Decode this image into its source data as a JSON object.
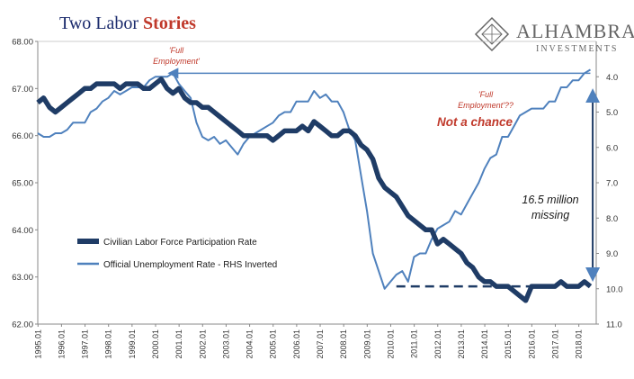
{
  "title": {
    "part1": "Two Labor",
    "part2": "Stories"
  },
  "logo": {
    "name": "ALHAMBRA",
    "sub": "INVESTMENTS"
  },
  "colors": {
    "participation": "#1f3c66",
    "unemployment": "#4f81bd",
    "title_navy": "#1a2a6c",
    "title_red": "#c0392b",
    "annotation_red": "#c0392b",
    "logo_gray": "#666666"
  },
  "annotations": {
    "full_employment_1": "'Full",
    "full_employment_2": "Employment'",
    "full_employment_q_1": "'Full",
    "full_employment_q_2": "Employment'??",
    "not_a_chance": "Not a chance",
    "missing_1": "16.5 million",
    "missing_2": "missing"
  },
  "chart_data": {
    "type": "line",
    "title": "Two Labor Stories",
    "x_ticks": [
      "1995.01",
      "1996.01",
      "1997.01",
      "1998.01",
      "1999.01",
      "2000.01",
      "2001.01",
      "2002.01",
      "2003.01",
      "2004.01",
      "2005.01",
      "2006.01",
      "2007.01",
      "2008.01",
      "2009.01",
      "2010.01",
      "2011.01",
      "2012.01",
      "2013.01",
      "2014.01",
      "2015.01",
      "2016.01",
      "2017.01",
      "2018.01"
    ],
    "x_range": [
      1995.0,
      2018.75
    ],
    "y_left": {
      "ticks": [
        "62.00",
        "63.00",
        "64.00",
        "65.00",
        "66.00",
        "67.00",
        "68.00"
      ],
      "range": [
        62.0,
        68.0
      ]
    },
    "y_right": {
      "ticks": [
        "4.0",
        "5.0",
        "6.0",
        "7.0",
        "8.0",
        "9.0",
        "10.0",
        "11.0"
      ],
      "range": [
        3.0,
        11.0
      ],
      "inverted": true
    },
    "grid": false,
    "legend_position": "left-middle",
    "series": [
      {
        "name": "Civilian Labor Force Participation Rate",
        "axis": "left",
        "x": [
          1995.0,
          1995.25,
          1995.5,
          1995.75,
          1996.0,
          1996.25,
          1996.5,
          1996.75,
          1997.0,
          1997.25,
          1997.5,
          1997.75,
          1998.0,
          1998.25,
          1998.5,
          1998.75,
          1999.0,
          1999.25,
          1999.5,
          1999.75,
          2000.0,
          2000.25,
          2000.5,
          2000.75,
          2001.0,
          2001.25,
          2001.5,
          2001.75,
          2002.0,
          2002.25,
          2002.5,
          2002.75,
          2003.0,
          2003.25,
          2003.5,
          2003.75,
          2004.0,
          2004.25,
          2004.5,
          2004.75,
          2005.0,
          2005.25,
          2005.5,
          2005.75,
          2006.0,
          2006.25,
          2006.5,
          2006.75,
          2007.0,
          2007.25,
          2007.5,
          2007.75,
          2008.0,
          2008.25,
          2008.5,
          2008.75,
          2009.0,
          2009.25,
          2009.5,
          2009.75,
          2010.0,
          2010.25,
          2010.5,
          2010.75,
          2011.0,
          2011.25,
          2011.5,
          2011.75,
          2012.0,
          2012.25,
          2012.5,
          2012.75,
          2013.0,
          2013.25,
          2013.5,
          2013.75,
          2014.0,
          2014.25,
          2014.5,
          2014.75,
          2015.0,
          2015.25,
          2015.5,
          2015.75,
          2016.0,
          2016.25,
          2016.5,
          2016.75,
          2017.0,
          2017.25,
          2017.5,
          2017.75,
          2018.0,
          2018.25,
          2018.5
        ],
        "values": [
          66.7,
          66.8,
          66.6,
          66.5,
          66.6,
          66.7,
          66.8,
          66.9,
          67.0,
          67.0,
          67.1,
          67.1,
          67.1,
          67.1,
          67.0,
          67.1,
          67.1,
          67.1,
          67.0,
          67.0,
          67.1,
          67.2,
          67.0,
          66.9,
          67.0,
          66.8,
          66.7,
          66.7,
          66.6,
          66.6,
          66.5,
          66.4,
          66.3,
          66.2,
          66.1,
          66.0,
          66.0,
          66.0,
          66.0,
          66.0,
          65.9,
          66.0,
          66.1,
          66.1,
          66.1,
          66.2,
          66.1,
          66.3,
          66.2,
          66.1,
          66.0,
          66.0,
          66.1,
          66.1,
          66.0,
          65.8,
          65.7,
          65.5,
          65.1,
          64.9,
          64.8,
          64.7,
          64.5,
          64.3,
          64.2,
          64.1,
          64.0,
          64.0,
          63.7,
          63.8,
          63.7,
          63.6,
          63.5,
          63.3,
          63.2,
          63.0,
          62.9,
          62.9,
          62.8,
          62.8,
          62.8,
          62.7,
          62.6,
          62.5,
          62.8,
          62.8,
          62.8,
          62.8,
          62.8,
          62.9,
          62.8,
          62.8,
          62.8,
          62.9,
          62.8
        ]
      },
      {
        "name": "Official Unemployment Rate - RHS Inverted",
        "axis": "right",
        "x": [
          1995.0,
          1995.25,
          1995.5,
          1995.75,
          1996.0,
          1996.25,
          1996.5,
          1996.75,
          1997.0,
          1997.25,
          1997.5,
          1997.75,
          1998.0,
          1998.25,
          1998.5,
          1998.75,
          1999.0,
          1999.25,
          1999.5,
          1999.75,
          2000.0,
          2000.25,
          2000.5,
          2000.75,
          2001.0,
          2001.25,
          2001.5,
          2001.75,
          2002.0,
          2002.25,
          2002.5,
          2002.75,
          2003.0,
          2003.25,
          2003.5,
          2003.75,
          2004.0,
          2004.25,
          2004.5,
          2004.75,
          2005.0,
          2005.25,
          2005.5,
          2005.75,
          2006.0,
          2006.25,
          2006.5,
          2006.75,
          2007.0,
          2007.25,
          2007.5,
          2007.75,
          2008.0,
          2008.25,
          2008.5,
          2008.75,
          2009.0,
          2009.25,
          2009.5,
          2009.75,
          2010.0,
          2010.25,
          2010.5,
          2010.75,
          2011.0,
          2011.25,
          2011.5,
          2011.75,
          2012.0,
          2012.25,
          2012.5,
          2012.75,
          2013.0,
          2013.25,
          2013.5,
          2013.75,
          2014.0,
          2014.25,
          2014.5,
          2014.75,
          2015.0,
          2015.25,
          2015.5,
          2015.75,
          2016.0,
          2016.25,
          2016.5,
          2016.75,
          2017.0,
          2017.25,
          2017.5,
          2017.75,
          2018.0,
          2018.25,
          2018.5
        ],
        "values": [
          5.6,
          5.7,
          5.7,
          5.6,
          5.6,
          5.5,
          5.3,
          5.3,
          5.3,
          5.0,
          4.9,
          4.7,
          4.6,
          4.4,
          4.5,
          4.4,
          4.3,
          4.3,
          4.3,
          4.1,
          4.0,
          4.0,
          4.0,
          3.9,
          4.2,
          4.4,
          4.6,
          5.3,
          5.7,
          5.8,
          5.7,
          5.9,
          5.8,
          6.0,
          6.2,
          5.9,
          5.7,
          5.6,
          5.5,
          5.4,
          5.3,
          5.1,
          5.0,
          5.0,
          4.7,
          4.7,
          4.7,
          4.4,
          4.6,
          4.5,
          4.7,
          4.7,
          5.0,
          5.5,
          5.8,
          6.8,
          7.8,
          9.0,
          9.5,
          10.0,
          9.8,
          9.6,
          9.5,
          9.8,
          9.1,
          9.0,
          9.0,
          8.6,
          8.3,
          8.2,
          8.1,
          7.8,
          7.9,
          7.6,
          7.3,
          7.0,
          6.6,
          6.3,
          6.2,
          5.7,
          5.7,
          5.4,
          5.1,
          5.0,
          4.9,
          4.9,
          4.9,
          4.7,
          4.7,
          4.3,
          4.3,
          4.1,
          4.1,
          3.9,
          3.8
        ]
      }
    ]
  }
}
